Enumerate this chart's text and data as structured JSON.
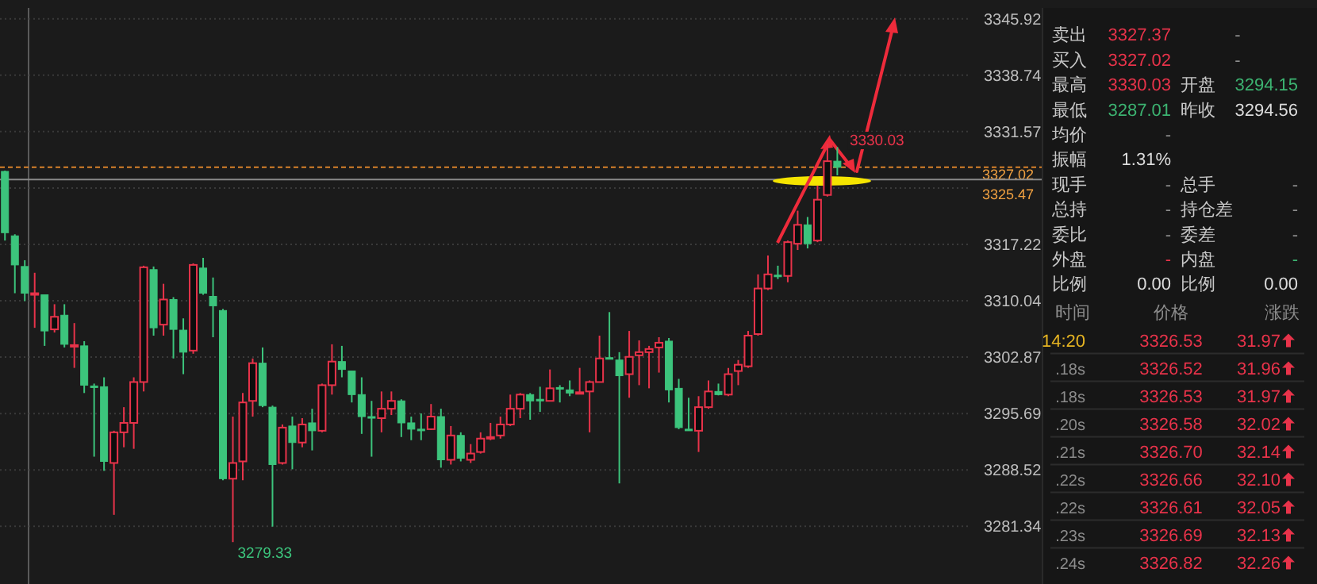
{
  "chart_data": [
    {
      "type": "candlestick",
      "categories": [
        null,
        null,
        null,
        null,
        null,
        null,
        null,
        null,
        null,
        null,
        null,
        null,
        null,
        null,
        null,
        null,
        null,
        null,
        null,
        null,
        null,
        null,
        null,
        null,
        null,
        null,
        null,
        null,
        null,
        null,
        null,
        null,
        null,
        null,
        null,
        null,
        null,
        null,
        null,
        null,
        null,
        null,
        null,
        null,
        null,
        null,
        null,
        null,
        null,
        null,
        null,
        null,
        null,
        null,
        null,
        null,
        null,
        null,
        null,
        null,
        null,
        null,
        null,
        null,
        null,
        null,
        null,
        null,
        null,
        null,
        null,
        null,
        null,
        null,
        null,
        null,
        null,
        null,
        null,
        null,
        null,
        null,
        null,
        null,
        null,
        null,
        null,
        null,
        null,
        null,
        null,
        null,
        null,
        null,
        null,
        null,
        null,
        null
      ],
      "ohlc": [
        [
          3326.5,
          3326.6,
          3317.7,
          3318.7
        ],
        [
          3318.3,
          3318.5,
          3311.0,
          3314.6
        ],
        [
          3314.4,
          3315.2,
          3310.0,
          3311.0
        ],
        [
          3310.9,
          3313.6,
          3306.6,
          3311.0
        ],
        [
          3310.8,
          3310.8,
          3304.3,
          3306.2
        ],
        [
          3306.4,
          3309.6,
          3306.0,
          3308.0
        ],
        [
          3308.2,
          3309.6,
          3304.1,
          3304.5
        ],
        [
          3304.3,
          3307.2,
          3301.5,
          3304.4
        ],
        [
          3304.3,
          3304.9,
          3298.3,
          3299.3
        ],
        [
          3299.2,
          3299.5,
          3290.2,
          3299.1
        ],
        [
          3299.1,
          3300.3,
          3288.4,
          3289.6
        ],
        [
          3289.4,
          3293.5,
          3282.8,
          3293.3
        ],
        [
          3293.3,
          3296.5,
          3291.4,
          3294.5
        ],
        [
          3294.5,
          3300.3,
          3291.2,
          3299.7
        ],
        [
          3299.7,
          3314.5,
          3298.5,
          3314.3
        ],
        [
          3314.0,
          3314.4,
          3305.6,
          3306.6
        ],
        [
          3307.0,
          3312.2,
          3305.6,
          3310.2
        ],
        [
          3310.2,
          3310.5,
          3302.7,
          3306.4
        ],
        [
          3306.3,
          3307.8,
          3300.7,
          3303.5
        ],
        [
          3303.7,
          3314.8,
          3303.3,
          3314.6
        ],
        [
          3314.2,
          3315.5,
          3310.8,
          3311.0
        ],
        [
          3310.6,
          3313.0,
          3305.4,
          3309.4
        ],
        [
          3308.8,
          3309.0,
          3287.2,
          3287.4
        ],
        [
          3287.4,
          3295.3,
          3279.33,
          3289.4
        ],
        [
          3289.6,
          3298.3,
          3287.2,
          3297.1
        ],
        [
          3297.3,
          3302.7,
          3295.3,
          3302.1
        ],
        [
          3302.1,
          3304.1,
          3296.5,
          3296.7
        ],
        [
          3296.5,
          3296.7,
          3281.3,
          3289.2
        ],
        [
          3289.4,
          3294.3,
          3289.2,
          3293.9
        ],
        [
          3294.1,
          3295.3,
          3288.6,
          3292.0
        ],
        [
          3292.0,
          3295.1,
          3291.4,
          3294.3
        ],
        [
          3294.5,
          3296.3,
          3291.0,
          3293.5
        ],
        [
          3293.5,
          3299.5,
          3293.3,
          3299.3
        ],
        [
          3299.3,
          3304.5,
          3298.1,
          3302.3
        ],
        [
          3302.3,
          3304.3,
          3300.3,
          3301.3
        ],
        [
          3301.1,
          3301.1,
          3297.1,
          3298.1
        ],
        [
          3298.1,
          3300.3,
          3293.1,
          3295.3
        ],
        [
          3295.3,
          3297.3,
          3290.2,
          3295.1
        ],
        [
          3295.1,
          3298.5,
          3293.3,
          3296.3
        ],
        [
          3296.3,
          3298.5,
          3295.5,
          3297.3
        ],
        [
          3297.3,
          3297.5,
          3292.7,
          3294.5
        ],
        [
          3294.5,
          3295.3,
          3292.3,
          3293.7
        ],
        [
          3293.7,
          3295.7,
          3292.3,
          3293.6
        ],
        [
          3293.7,
          3296.9,
          3293.6,
          3295.3
        ],
        [
          3295.3,
          3296.3,
          3288.8,
          3289.8
        ],
        [
          3289.8,
          3294.1,
          3289.2,
          3292.9
        ],
        [
          3292.9,
          3293.3,
          3289.6,
          3290.0
        ],
        [
          3289.8,
          3291.8,
          3289.4,
          3290.6
        ],
        [
          3290.8,
          3293.3,
          3290.6,
          3292.5
        ],
        [
          3292.5,
          3294.5,
          3292.3,
          3292.7
        ],
        [
          3292.9,
          3295.3,
          3292.5,
          3294.3
        ],
        [
          3294.3,
          3298.1,
          3294.1,
          3296.3
        ],
        [
          3296.3,
          3298.3,
          3295.1,
          3298.1
        ],
        [
          3298.1,
          3298.3,
          3294.9,
          3297.3
        ],
        [
          3297.5,
          3299.1,
          3295.9,
          3297.4
        ],
        [
          3297.3,
          3301.3,
          3297.3,
          3298.9
        ],
        [
          3299.0,
          3299.3,
          3297.1,
          3298.8
        ],
        [
          3298.7,
          3299.9,
          3297.9,
          3298.3
        ],
        [
          3298.3,
          3301.5,
          3298.3,
          3298.4
        ],
        [
          3298.5,
          3299.9,
          3293.3,
          3299.7
        ],
        [
          3299.7,
          3305.6,
          3299.7,
          3302.7
        ],
        [
          3302.8,
          3308.6,
          3302.6,
          3302.6
        ],
        [
          3302.5,
          3303.5,
          3286.8,
          3300.5
        ],
        [
          3300.7,
          3306.2,
          3297.7,
          3302.9
        ],
        [
          3303.1,
          3305.0,
          3299.3,
          3303.5
        ],
        [
          3303.5,
          3304.3,
          3298.9,
          3303.9
        ],
        [
          3304.1,
          3305.4,
          3300.9,
          3304.7
        ],
        [
          3304.9,
          3305.3,
          3297.1,
          3298.7
        ],
        [
          3298.9,
          3300.1,
          3293.7,
          3293.9
        ],
        [
          3293.7,
          3297.7,
          3293.5,
          3293.6
        ],
        [
          3293.5,
          3297.9,
          3290.8,
          3296.5
        ],
        [
          3296.5,
          3299.9,
          3296.3,
          3298.5
        ],
        [
          3298.5,
          3299.5,
          3298.0,
          3298.1
        ],
        [
          3298.1,
          3301.5,
          3297.9,
          3300.7
        ],
        [
          3301.1,
          3302.5,
          3299.3,
          3301.9
        ],
        [
          3301.7,
          3306.2,
          3301.5,
          3305.6
        ],
        [
          3305.8,
          3313.4,
          3305.6,
          3311.6
        ],
        [
          3311.6,
          3315.8,
          3311.4,
          3313.4
        ],
        [
          3313.3,
          3314.5,
          3312.8,
          3313.2
        ],
        [
          3313.2,
          3317.7,
          3312.4,
          3317.5
        ],
        [
          3317.3,
          3321.5,
          3316.5,
          3319.7
        ],
        [
          3319.7,
          3320.7,
          3316.7,
          3317.3
        ],
        [
          3317.7,
          3324.7,
          3317.5,
          3322.9
        ],
        [
          3323.5,
          3330.03,
          3323.3,
          3327.8
        ],
        [
          3327.8,
          3329.6,
          3326.0,
          3327.02
        ],
        null,
        null,
        null,
        null,
        null,
        null,
        null,
        null,
        null,
        null,
        null,
        null,
        null
      ],
      "ylim": [
        3274,
        3347.3
      ],
      "yticks": [
        3345.92,
        3338.74,
        3331.57,
        {
          "value": 3324.39,
          "label": null
        },
        3317.22,
        3310.04,
        3302.87,
        3295.69,
        3288.52,
        3281.34
      ],
      "grid": "y",
      "ref_lines": [
        {
          "axis": "y",
          "value": 3327.02,
          "label": "3327.02",
          "color": "#d9822b",
          "line_style": "dashed"
        },
        {
          "axis": "y",
          "value": 3325.47,
          "label": "3325.47",
          "color": "#8a8a8a",
          "line_style": "solid"
        }
      ],
      "annotations": [
        "3330.03",
        "3279.33"
      ]
    },
    {
      "type": "other",
      "annotations": [
        "卖出",
        "3327.37",
        "-",
        "买入",
        "3327.02",
        "-",
        "最高",
        "3330.03",
        "开盘",
        "3294.15",
        "最低",
        "3287.01",
        "昨收",
        "3294.56",
        "均价",
        "-",
        "振幅",
        "1.31%",
        "现手",
        "-",
        "总手",
        "-",
        "总持",
        "-",
        "持仓差",
        "-",
        "委比",
        "-",
        "委差",
        "-",
        "外盘",
        "-",
        "内盘",
        "-",
        "比例",
        "0.00",
        "比例",
        "0.00",
        "时间",
        "价格",
        "涨跌",
        "14:20",
        "3326.53",
        "31.97",
        ".18s",
        "3326.52",
        "31.96",
        ".18s",
        "3326.53",
        "31.97",
        ".20s",
        "3326.58",
        "32.02",
        ".21s",
        "3326.70",
        "32.14",
        ".22s",
        "3326.66",
        "32.10",
        ".22s",
        "3326.61",
        "32.05",
        ".23s",
        "3326.69",
        "32.13",
        ".24s",
        "3326.82",
        "32.26"
      ]
    }
  ]
}
